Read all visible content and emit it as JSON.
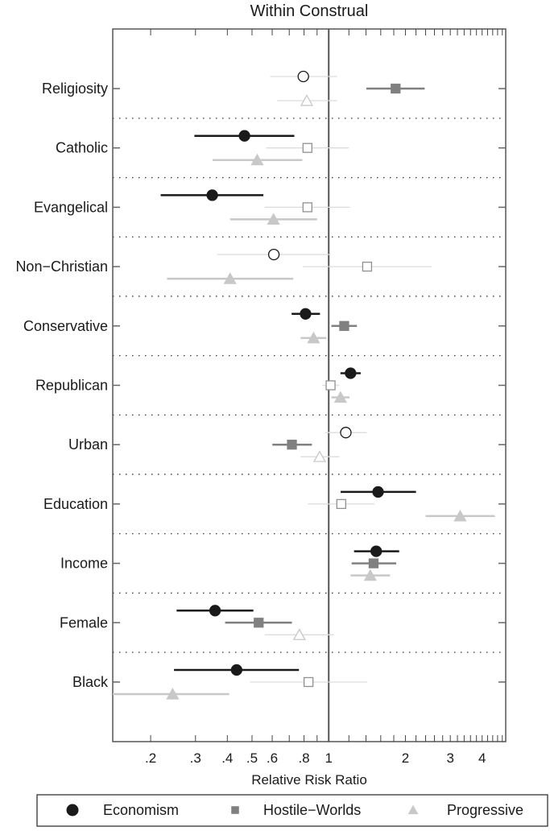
{
  "chart_data": {
    "type": "scatter",
    "title": "Within Construal",
    "xlabel": "Relative Risk Ratio",
    "xscale": "log",
    "xlim": [
      0.142,
      4.95
    ],
    "reference_line": 1,
    "grid": false,
    "row_separators": "dotted",
    "legend_position": "bottom",
    "x_ticks": [
      {
        "value": 0.2,
        "label": ".2"
      },
      {
        "value": 0.3,
        "label": ".3"
      },
      {
        "value": 0.4,
        "label": ".4"
      },
      {
        "value": 0.5,
        "label": ".5"
      },
      {
        "value": 0.6,
        "label": ".6"
      },
      {
        "value": 0.8,
        "label": ".8"
      },
      {
        "value": 1,
        "label": "1"
      },
      {
        "value": 2,
        "label": "2"
      },
      {
        "value": 3,
        "label": "3"
      },
      {
        "value": 4,
        "label": "4"
      }
    ],
    "categories": [
      "Religiosity",
      "Catholic",
      "Evangelical",
      "Non−Christian",
      "Conservative",
      "Republican",
      "Urban",
      "Education",
      "Income",
      "Female",
      "Black"
    ],
    "series": [
      {
        "name": "Economism",
        "marker": "circle",
        "color": "#1a1a1a",
        "estimates": [
          0.795,
          0.467,
          0.349,
          0.609,
          0.811,
          1.218,
          1.167,
          1.562,
          1.536,
          0.358,
          0.435
        ],
        "ci_low": [
          0.589,
          0.297,
          0.219,
          0.365,
          0.715,
          1.112,
          0.969,
          1.114,
          1.257,
          0.253,
          0.247
        ],
        "ci_high": [
          1.08,
          0.733,
          0.554,
          1.015,
          0.924,
          1.335,
          1.41,
          2.2,
          1.89,
          0.506,
          0.764
        ],
        "significant": [
          false,
          true,
          true,
          false,
          true,
          true,
          false,
          true,
          true,
          true,
          true
        ]
      },
      {
        "name": "Hostile−Worlds",
        "marker": "square",
        "color": "#808080",
        "estimates": [
          1.83,
          0.825,
          0.825,
          1.415,
          1.15,
          1.017,
          0.717,
          1.12,
          1.5,
          0.531,
          0.833
        ],
        "ci_low": [
          1.405,
          0.568,
          0.561,
          0.792,
          1.024,
          0.944,
          0.601,
          0.829,
          1.23,
          0.392,
          0.491
        ],
        "ci_high": [
          2.38,
          1.2,
          1.21,
          2.53,
          1.29,
          1.101,
          0.859,
          1.514,
          1.84,
          0.717,
          1.415
        ],
        "significant": [
          true,
          false,
          false,
          false,
          true,
          false,
          true,
          false,
          true,
          true,
          false
        ]
      },
      {
        "name": "Progressive",
        "marker": "triangle",
        "color": "#c8c8c8",
        "estimates": [
          0.82,
          0.524,
          0.607,
          0.41,
          0.872,
          1.112,
          0.921,
          3.28,
          1.456,
          0.767,
          0.244
        ],
        "ci_low": [
          0.628,
          0.35,
          0.41,
          0.232,
          0.776,
          1.024,
          0.775,
          2.4,
          1.218,
          0.562,
          0.142
        ],
        "ci_high": [
          1.08,
          0.788,
          0.9,
          0.726,
          0.979,
          1.207,
          1.101,
          4.49,
          1.74,
          1.049,
          0.407
        ],
        "significant": [
          false,
          true,
          true,
          true,
          true,
          true,
          false,
          true,
          true,
          false,
          true
        ]
      }
    ]
  }
}
